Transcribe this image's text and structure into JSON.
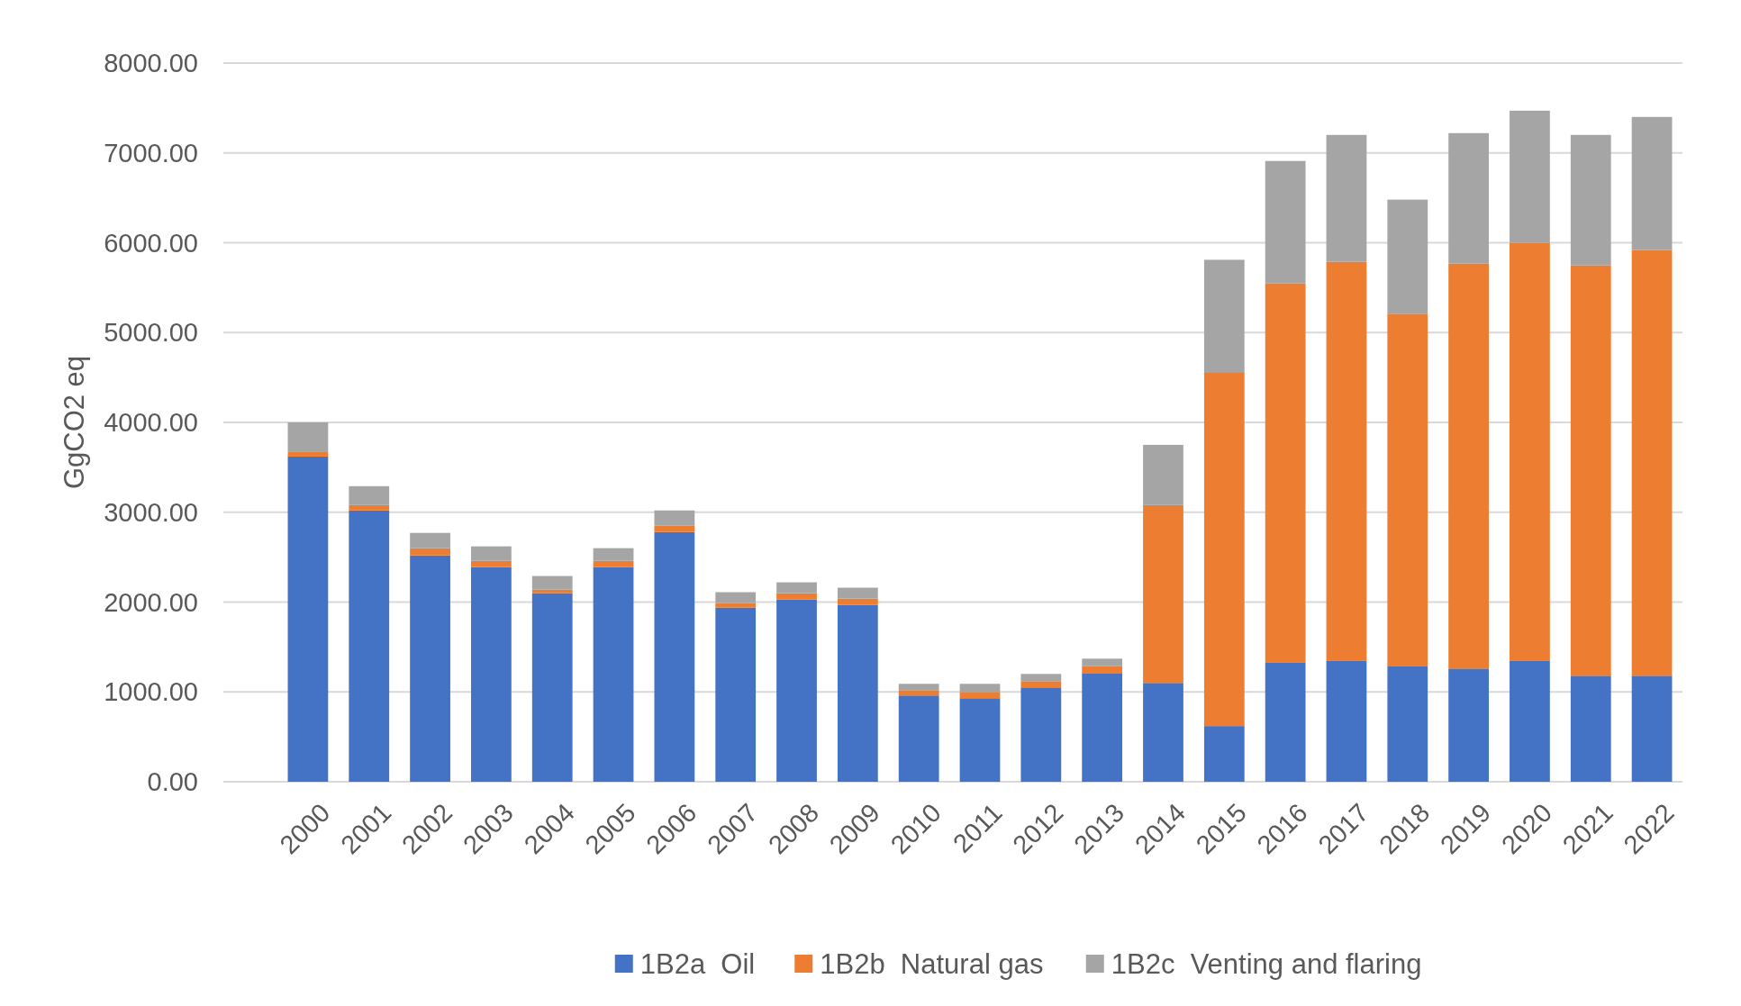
{
  "chart_data": {
    "type": "bar",
    "stacked": true,
    "ylabel": "GgCO2 eq",
    "categories": [
      "2000",
      "2001",
      "2002",
      "2003",
      "2004",
      "2005",
      "2006",
      "2007",
      "2008",
      "2009",
      "2010",
      "2011",
      "2012",
      "2013",
      "2014",
      "2015",
      "2016",
      "2017",
      "2018",
      "2019",
      "2020",
      "2021",
      "2022"
    ],
    "series": [
      {
        "name": "1B2a  Oil",
        "color": "#4472c4",
        "values": [
          3620,
          3020,
          2520,
          2390,
          2100,
          2390,
          2780,
          1940,
          2030,
          1970,
          960,
          930,
          1050,
          1210,
          1100,
          620,
          1330,
          1350,
          1290,
          1260,
          1350,
          1180,
          1180
        ]
      },
      {
        "name": "1B2b  Natural gas",
        "color": "#ed7d31",
        "values": [
          50,
          60,
          80,
          70,
          40,
          70,
          70,
          50,
          70,
          70,
          60,
          70,
          70,
          80,
          1980,
          3940,
          4220,
          4440,
          3920,
          4510,
          4650,
          4570,
          4740
        ]
      },
      {
        "name": "1B2c  Venting and flaring",
        "color": "#a5a5a5",
        "values": [
          330,
          210,
          170,
          160,
          150,
          140,
          170,
          120,
          120,
          120,
          70,
          90,
          80,
          80,
          670,
          1250,
          1360,
          1410,
          1270,
          1450,
          1470,
          1450,
          1480
        ]
      }
    ],
    "ylim": [
      0,
      8000
    ],
    "yticks": [
      {
        "value": 0,
        "label": "0.00"
      },
      {
        "value": 1000,
        "label": "1000.00"
      },
      {
        "value": 2000,
        "label": "2000.00"
      },
      {
        "value": 3000,
        "label": "3000.00"
      },
      {
        "value": 4000,
        "label": "4000.00"
      },
      {
        "value": 5000,
        "label": "5000.00"
      },
      {
        "value": 6000,
        "label": "6000.00"
      },
      {
        "value": 7000,
        "label": "7000.00"
      },
      {
        "value": 8000,
        "label": "8000.00"
      }
    ],
    "grid": "y",
    "legend": "bottom"
  }
}
